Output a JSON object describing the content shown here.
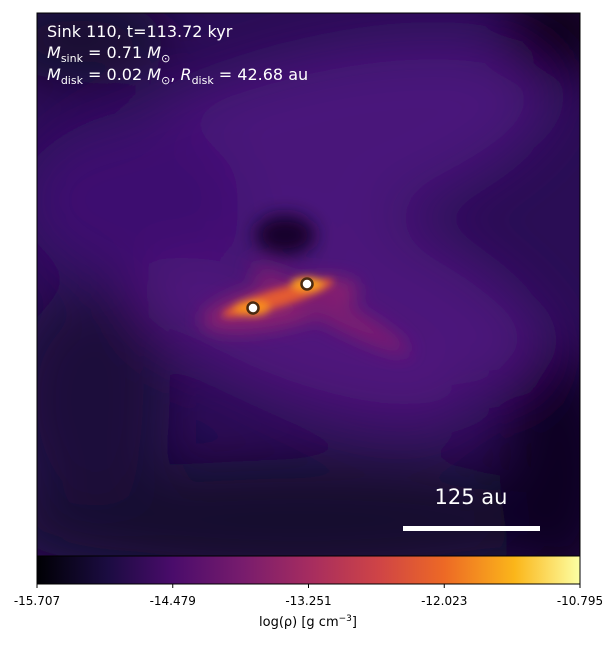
{
  "chart_data": {
    "type": "image",
    "annotations": {
      "line1": "Sink 110, t=113.72 kyr",
      "line2": [
        "M",
        "sink",
        " = 0.71 ",
        "M",
        "⊙"
      ],
      "line3": [
        "M",
        "disk",
        " = 0.02 ",
        "M",
        "⊙",
        ", ",
        "R",
        "disk",
        " = 42.68 au"
      ]
    },
    "scale_bar_label": "125 au",
    "colorbar": {
      "clim": [
        -15.707,
        -10.795
      ],
      "ticks": [
        -15.707,
        -14.479,
        -13.251,
        -12.023,
        -10.795
      ],
      "label": [
        "log(ρ) [g cm",
        "−3",
        "]"
      ]
    }
  }
}
